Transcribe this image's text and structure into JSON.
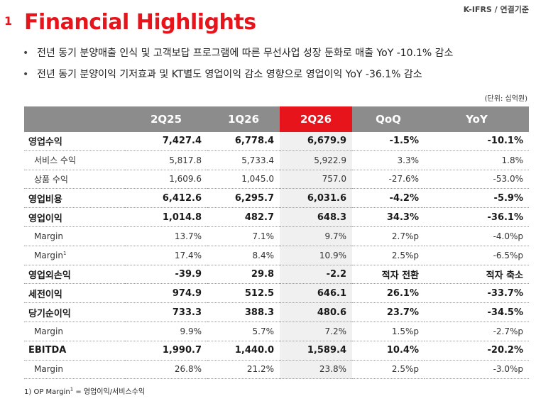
{
  "header": {
    "standard": "K-IFRS / 연결기준",
    "section_number": "1",
    "title": "Financial Highlights"
  },
  "bullets": [
    "전년 동기  분양매출 인식 및 고객보답 프로그램에 따른 무선사업 성장 둔화로 매출 YoY -10.1% 감소",
    "전년 동기 분양이익 기저효과 및 KT별도 영업이익 감소 영향으로 영업이익 YoY -36.1% 감소"
  ],
  "unit_note": "(단위: 십억원)",
  "table": {
    "columns": [
      "",
      "2Q25",
      "1Q26",
      "2Q26",
      "QoQ",
      "YoY"
    ],
    "highlight_column": "2Q26",
    "rows": [
      {
        "label": "영업수익",
        "values": [
          "7,427.4",
          "6,778.4",
          "6,679.9",
          "-1.5%",
          "-10.1%"
        ]
      },
      {
        "label": "서비스 수익",
        "values": [
          "5,817.8",
          "5,733.4",
          "5,922.9",
          "3.3%",
          "1.8%"
        ]
      },
      {
        "label": "상품 수익",
        "values": [
          "1,609.6",
          "1,045.0",
          "757.0",
          "-27.6%",
          "-53.0%"
        ]
      },
      {
        "label": "영업비용",
        "values": [
          "6,412.6",
          "6,295.7",
          "6,031.6",
          "-4.2%",
          "-5.9%"
        ]
      },
      {
        "label": "영업이익",
        "values": [
          "1,014.8",
          "482.7",
          "648.3",
          "34.3%",
          "-36.1%"
        ]
      },
      {
        "label": "Margin",
        "values": [
          "13.7%",
          "7.1%",
          "9.7%",
          "2.7%p",
          "-4.0%p"
        ]
      },
      {
        "label": "Margin",
        "sup": "1",
        "values": [
          "17.4%",
          "8.4%",
          "10.9%",
          "2.5%p",
          "-6.5%p"
        ]
      },
      {
        "label": "영업외손익",
        "values": [
          "-39.9",
          "29.8",
          "-2.2",
          "적자 전환",
          "적자 축소"
        ]
      },
      {
        "label": "세전이익",
        "values": [
          "974.9",
          "512.5",
          "646.1",
          "26.1%",
          "-33.7%"
        ]
      },
      {
        "label": "당기순이익",
        "values": [
          "733.3",
          "388.3",
          "480.6",
          "23.7%",
          "-34.5%"
        ]
      },
      {
        "label": "Margin",
        "values": [
          "9.9%",
          "5.7%",
          "7.2%",
          "1.5%p",
          "-2.7%p"
        ]
      },
      {
        "label": "EBITDA",
        "values": [
          "1,990.7",
          "1,440.0",
          "1,589.4",
          "10.4%",
          "-20.2%"
        ]
      },
      {
        "label": "Margin",
        "values": [
          "26.8%",
          "21.2%",
          "23.8%",
          "2.5%p",
          "-3.0%p"
        ]
      }
    ]
  },
  "footnote": {
    "prefix": "1) OP Margin",
    "sup": "1",
    "suffix": " = 영업이익/서비스수익"
  }
}
